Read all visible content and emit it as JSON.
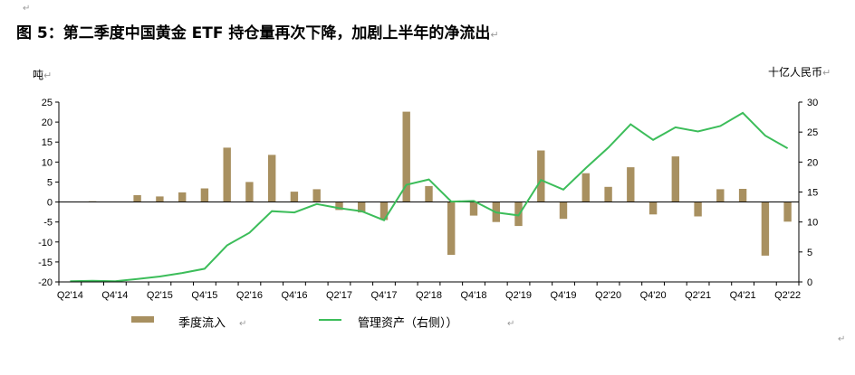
{
  "title": "图 5：第二季度中国黄金 ETF 持仓量再次下降，加剧上半年的净流出",
  "paragraph_mark": "↵",
  "chart_data": {
    "type": "bar",
    "left_unit": "吨",
    "right_unit": "十亿人民币",
    "ylim_left": [
      -20,
      25
    ],
    "ylim_right": [
      0,
      30
    ],
    "left_ticks": [
      25,
      20,
      15,
      10,
      5,
      0,
      -5,
      -10,
      -15,
      -20
    ],
    "right_ticks": [
      30,
      25,
      20,
      15,
      10,
      5,
      0
    ],
    "categories": [
      "Q2'14",
      "Q3'14",
      "Q4'14",
      "Q1'15",
      "Q2'15",
      "Q3'15",
      "Q4'15",
      "Q1'16",
      "Q2'16",
      "Q3'16",
      "Q4'16",
      "Q1'17",
      "Q2'17",
      "Q3'17",
      "Q4'17",
      "Q1'18",
      "Q2'18",
      "Q3'18",
      "Q4'18",
      "Q1'19",
      "Q2'19",
      "Q3'19",
      "Q4'19",
      "Q1'20",
      "Q2'20",
      "Q3'20",
      "Q4'20",
      "Q1'21",
      "Q2'21",
      "Q3'21",
      "Q4'21",
      "Q1'22",
      "Q2'22"
    ],
    "x_tick_labels": [
      "Q2'14",
      "Q4'14",
      "Q2'15",
      "Q4'15",
      "Q2'16",
      "Q4'16",
      "Q2'17",
      "Q4'17",
      "Q2'18",
      "Q4'18",
      "Q2'19",
      "Q4'19",
      "Q2'20",
      "Q4'20",
      "Q2'21",
      "Q4'21",
      "Q2'22"
    ],
    "series": [
      {
        "name": "季度流入",
        "type": "bar",
        "axis": "left",
        "color": "#a89060",
        "values": [
          0,
          0.2,
          0,
          1.7,
          1.4,
          2.4,
          3.4,
          13.6,
          5.0,
          11.8,
          2.6,
          3.2,
          -2.0,
          -2.6,
          -4.5,
          22.6,
          4.0,
          -13.2,
          -3.4,
          -5.0,
          -6.0,
          12.9,
          -4.2,
          7.2,
          3.8,
          8.7,
          -3.1,
          11.4,
          -3.6,
          3.2,
          3.3,
          -13.4,
          -4.9
        ]
      },
      {
        "name": "管理资产（右侧））",
        "type": "line",
        "axis": "right",
        "color": "#3cbd5a",
        "values": [
          0.1,
          0.2,
          0.1,
          0.5,
          0.9,
          1.5,
          2.2,
          6.1,
          8.2,
          11.8,
          11.6,
          13.0,
          12.3,
          11.8,
          10.3,
          16.2,
          17.1,
          13.4,
          13.5,
          11.6,
          11.1,
          17.0,
          15.4,
          19.0,
          22.4,
          26.3,
          23.7,
          25.8,
          25.1,
          26.0,
          28.2,
          24.4,
          22.3
        ]
      }
    ],
    "legend_position": "bottom",
    "grid": false
  }
}
